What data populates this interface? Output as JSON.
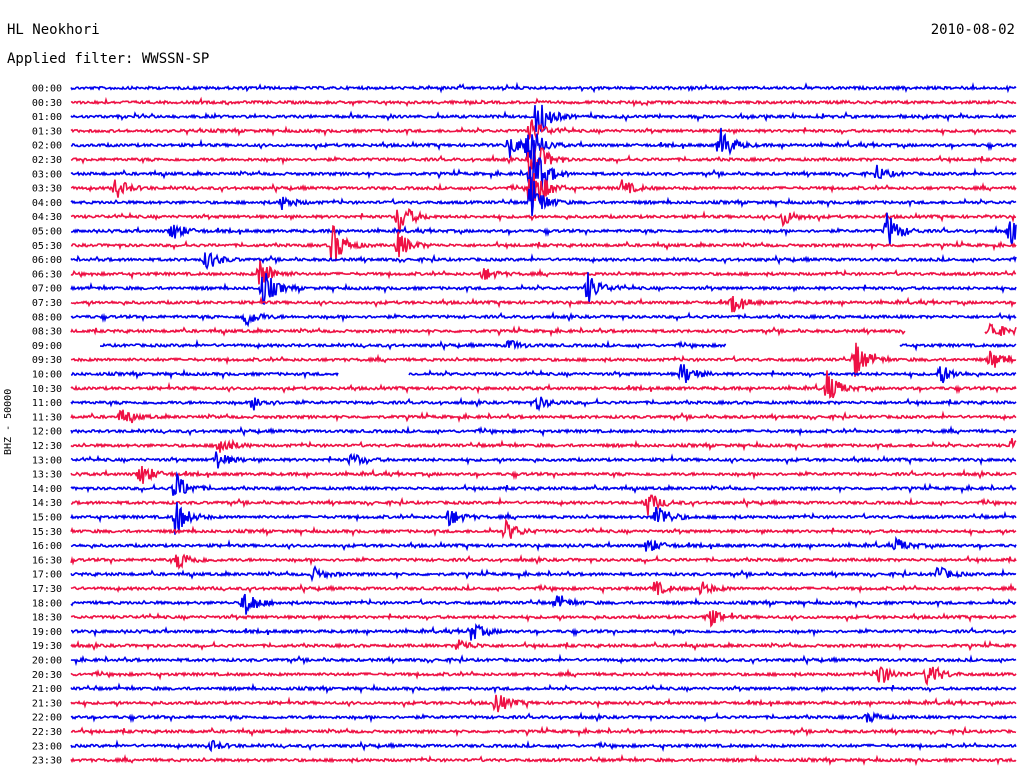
{
  "header": {
    "station": "HL Neokhori",
    "date": "2010-08-02",
    "filter": "Applied filter: WWSSN-SP"
  },
  "colors": {
    "even_trace": "#0000ee",
    "odd_trace": "#ee1144",
    "background": "#ffffff",
    "text": "#000000"
  },
  "chart_data": {
    "type": "line",
    "title": "HL Neokhori",
    "subtitle": "Applied filter: WWSSN-SP",
    "ylabel": "BHZ - 50000",
    "xlabel": "",
    "grid": false,
    "row_labels": [
      "00:00",
      "00:30",
      "01:00",
      "01:30",
      "02:00",
      "02:30",
      "03:00",
      "03:30",
      "04:00",
      "04:30",
      "05:00",
      "05:30",
      "06:00",
      "06:30",
      "07:00",
      "07:30",
      "08:00",
      "08:30",
      "09:00",
      "09:30",
      "10:00",
      "10:30",
      "11:00",
      "11:30",
      "12:00",
      "12:30",
      "13:00",
      "13:30",
      "14:00",
      "14:30",
      "15:00",
      "15:30",
      "16:00",
      "16:30",
      "17:00",
      "17:30",
      "18:00",
      "18:30",
      "19:00",
      "19:30",
      "20:00",
      "20:30",
      "21:00",
      "21:30",
      "22:00",
      "22:30",
      "23:00",
      "23:30"
    ],
    "row_minutes": 30,
    "gaps": [
      {
        "row": 18,
        "from_min": 0.0,
        "to_min": 0.9
      },
      {
        "row": 18,
        "from_min": 20.8,
        "to_min": 26.3
      },
      {
        "row": 17,
        "from_min": 26.5,
        "to_min": 29.0
      },
      {
        "row": 20,
        "from_min": 8.5,
        "to_min": 10.7
      }
    ],
    "events": [
      {
        "row": 2,
        "min": 14.8,
        "amp": 1.7
      },
      {
        "row": 3,
        "min": 14.6,
        "amp": 1.0
      },
      {
        "row": 4,
        "min": 13.9,
        "amp": 0.8
      },
      {
        "row": 4,
        "min": 14.5,
        "amp": 1.8
      },
      {
        "row": 4,
        "min": 20.6,
        "amp": 1.4
      },
      {
        "row": 5,
        "min": 14.6,
        "amp": 2.2
      },
      {
        "row": 6,
        "min": 14.6,
        "amp": 3.2
      },
      {
        "row": 6,
        "min": 25.6,
        "amp": 0.5
      },
      {
        "row": 7,
        "min": 14.6,
        "amp": 2.6
      },
      {
        "row": 7,
        "min": 1.4,
        "amp": 0.8
      },
      {
        "row": 7,
        "min": 17.5,
        "amp": 0.6
      },
      {
        "row": 8,
        "min": 14.6,
        "amp": 1.8
      },
      {
        "row": 8,
        "min": 6.7,
        "amp": 0.5
      },
      {
        "row": 9,
        "min": 10.4,
        "amp": 1.4
      },
      {
        "row": 9,
        "min": 22.6,
        "amp": 0.6
      },
      {
        "row": 10,
        "min": 3.2,
        "amp": 0.7
      },
      {
        "row": 10,
        "min": 25.9,
        "amp": 1.4
      },
      {
        "row": 10,
        "min": 29.8,
        "amp": 1.0
      },
      {
        "row": 11,
        "min": 8.3,
        "amp": 1.6
      },
      {
        "row": 11,
        "min": 10.4,
        "amp": 1.0
      },
      {
        "row": 12,
        "min": 4.3,
        "amp": 0.8
      },
      {
        "row": 13,
        "min": 6.0,
        "amp": 1.2
      },
      {
        "row": 13,
        "min": 13.1,
        "amp": 0.5
      },
      {
        "row": 14,
        "min": 6.1,
        "amp": 1.4
      },
      {
        "row": 14,
        "min": 16.4,
        "amp": 1.2
      },
      {
        "row": 15,
        "min": 21.0,
        "amp": 0.7
      },
      {
        "row": 16,
        "min": 5.5,
        "amp": 0.8
      },
      {
        "row": 17,
        "min": 29.2,
        "amp": 0.7
      },
      {
        "row": 18,
        "min": 13.9,
        "amp": 0.4
      },
      {
        "row": 19,
        "min": 24.9,
        "amp": 1.4
      },
      {
        "row": 19,
        "min": 29.2,
        "amp": 0.8
      },
      {
        "row": 20,
        "min": 19.4,
        "amp": 0.9
      },
      {
        "row": 20,
        "min": 27.6,
        "amp": 0.7
      },
      {
        "row": 21,
        "min": 24.0,
        "amp": 1.2
      },
      {
        "row": 22,
        "min": 5.8,
        "amp": 0.5
      },
      {
        "row": 22,
        "min": 14.8,
        "amp": 0.5
      },
      {
        "row": 23,
        "min": 1.6,
        "amp": 0.6
      },
      {
        "row": 25,
        "min": 4.7,
        "amp": 0.8
      },
      {
        "row": 25,
        "min": 29.9,
        "amp": 0.7
      },
      {
        "row": 26,
        "min": 4.6,
        "amp": 0.7
      },
      {
        "row": 26,
        "min": 8.9,
        "amp": 0.5
      },
      {
        "row": 27,
        "min": 2.2,
        "amp": 0.9
      },
      {
        "row": 28,
        "min": 3.3,
        "amp": 1.2
      },
      {
        "row": 29,
        "min": 18.3,
        "amp": 0.9
      },
      {
        "row": 30,
        "min": 3.3,
        "amp": 1.4
      },
      {
        "row": 30,
        "min": 12.0,
        "amp": 0.7
      },
      {
        "row": 30,
        "min": 18.6,
        "amp": 1.1
      },
      {
        "row": 31,
        "min": 13.8,
        "amp": 0.8
      },
      {
        "row": 32,
        "min": 18.3,
        "amp": 0.6
      },
      {
        "row": 32,
        "min": 26.2,
        "amp": 0.5
      },
      {
        "row": 33,
        "min": 3.4,
        "amp": 0.8
      },
      {
        "row": 34,
        "min": 7.7,
        "amp": 0.5
      },
      {
        "row": 34,
        "min": 27.5,
        "amp": 0.6
      },
      {
        "row": 35,
        "min": 18.5,
        "amp": 0.6
      },
      {
        "row": 35,
        "min": 20.0,
        "amp": 0.5
      },
      {
        "row": 36,
        "min": 5.5,
        "amp": 1.1
      },
      {
        "row": 36,
        "min": 15.4,
        "amp": 0.5
      },
      {
        "row": 37,
        "min": 20.2,
        "amp": 0.8
      },
      {
        "row": 38,
        "min": 12.7,
        "amp": 0.7
      },
      {
        "row": 39,
        "min": 12.3,
        "amp": 0.5
      },
      {
        "row": 41,
        "min": 25.6,
        "amp": 1.0
      },
      {
        "row": 41,
        "min": 27.2,
        "amp": 1.0
      },
      {
        "row": 43,
        "min": 13.5,
        "amp": 0.8
      },
      {
        "row": 44,
        "min": 25.3,
        "amp": 0.4
      },
      {
        "row": 46,
        "min": 4.4,
        "amp": 0.4
      }
    ]
  }
}
